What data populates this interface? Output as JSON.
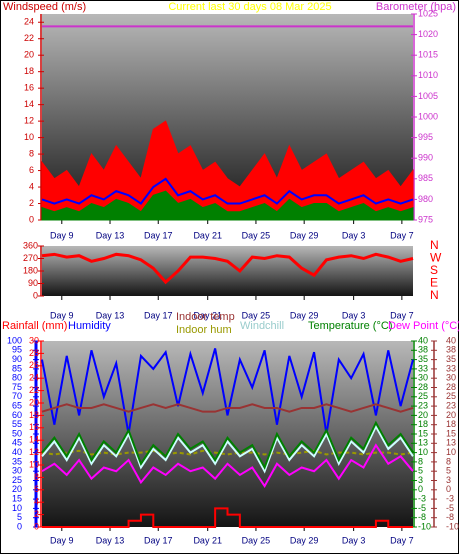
{
  "chart_data": [
    {
      "type": "line",
      "title": "Current last 30 days 08 Mar 2025",
      "y_label": "Windspeed (m/s)",
      "y2_label": "Barometer (hpa)",
      "x": [
        0,
        1,
        2,
        3,
        4,
        5,
        6,
        7,
        8,
        9,
        10,
        11,
        12,
        13,
        14,
        15,
        16,
        17,
        18,
        19,
        20,
        21,
        22,
        23,
        24,
        25,
        26,
        27,
        28,
        29,
        30
      ],
      "xlim": [
        0,
        30
      ],
      "xticks": [
        {
          "value": 1.6,
          "label": "Day 9"
        },
        {
          "value": 5.5,
          "label": "Day 13"
        },
        {
          "value": 9.4,
          "label": "Day 17"
        },
        {
          "value": 13.4,
          "label": "Day 21"
        },
        {
          "value": 17.3,
          "label": "Day 25"
        },
        {
          "value": 21.2,
          "label": "Day 29"
        },
        {
          "value": 25.2,
          "label": "Day 3"
        },
        {
          "value": 29.1,
          "label": "Day 7"
        }
      ],
      "ylim": [
        0,
        25
      ],
      "yticks": [
        0,
        2,
        4,
        6,
        8,
        10,
        12,
        14,
        16,
        18,
        20,
        22,
        24
      ],
      "y2lim": [
        975,
        1025
      ],
      "y2ticks": [
        975,
        980,
        985,
        990,
        995,
        1000,
        1005,
        1010,
        1015,
        1020,
        1025
      ],
      "series": [
        {
          "color": "#ff0000",
          "style": "area",
          "values": [
            7,
            5,
            6,
            4,
            8,
            6,
            9,
            7,
            5,
            11,
            12,
            8,
            9,
            6,
            7,
            5,
            4,
            6,
            8,
            5,
            9,
            6,
            7,
            8,
            5,
            6,
            7,
            5,
            6,
            4,
            6
          ]
        },
        {
          "color": "#0000ff",
          "style": "line",
          "values": [
            2.5,
            2,
            2.5,
            2,
            3,
            2.5,
            3.5,
            3,
            2,
            4,
            5,
            3,
            3.5,
            2.5,
            3,
            2,
            2,
            2.5,
            3,
            2,
            3.5,
            2.5,
            3,
            3,
            2,
            2.5,
            3,
            2,
            2.5,
            2,
            2.5
          ]
        },
        {
          "color": "#008000",
          "style": "area",
          "values": [
            1.5,
            1,
            1.5,
            1,
            2,
            1.5,
            2.5,
            2,
            1,
            3,
            3.5,
            2,
            2.5,
            1.5,
            2,
            1,
            1,
            1.5,
            2,
            1,
            2.5,
            1.5,
            2,
            2,
            1,
            1.5,
            2,
            1,
            1.5,
            1,
            1.5
          ]
        },
        {
          "color": "#cc33cc",
          "style": "line",
          "axis": "y2",
          "values": [
            1022,
            1022,
            1022,
            1022,
            1022,
            1022,
            1022,
            1022,
            1022,
            1022,
            1022,
            1022,
            1022,
            1022,
            1022,
            1022,
            1022,
            1022,
            1022,
            1022,
            1022,
            1022,
            1022,
            1022,
            1022,
            1022,
            1022,
            1022,
            1022,
            1022,
            1022
          ]
        }
      ]
    },
    {
      "type": "line",
      "x": [
        0,
        1,
        2,
        3,
        4,
        5,
        6,
        7,
        8,
        9,
        10,
        11,
        12,
        13,
        14,
        15,
        16,
        17,
        18,
        19,
        20,
        21,
        22,
        23,
        24,
        25,
        26,
        27,
        28,
        29,
        30
      ],
      "xlim": [
        0,
        30
      ],
      "xticks": [
        {
          "value": 1.6,
          "label": "Day 9"
        },
        {
          "value": 5.5,
          "label": "Day 13"
        },
        {
          "value": 9.4,
          "label": "Day 17"
        },
        {
          "value": 13.4,
          "label": "Day 21"
        },
        {
          "value": 17.3,
          "label": "Day 25"
        },
        {
          "value": 21.2,
          "label": "Day 29"
        },
        {
          "value": 25.2,
          "label": "Day 3"
        },
        {
          "value": 29.1,
          "label": "Day 7"
        }
      ],
      "ylim": [
        0,
        360
      ],
      "yticks": [
        0,
        90,
        180,
        270,
        360
      ],
      "y2lim": [
        0,
        360
      ],
      "y2ticks": [
        {
          "value": 360,
          "label": "N"
        },
        {
          "value": 270,
          "label": "W"
        },
        {
          "value": 180,
          "label": "S"
        },
        {
          "value": 90,
          "label": "E"
        },
        {
          "value": 0,
          "label": "N"
        }
      ],
      "series": [
        {
          "color": "#ff0000",
          "style": "line",
          "values": [
            290,
            300,
            280,
            290,
            250,
            270,
            300,
            290,
            260,
            200,
            100,
            180,
            280,
            280,
            270,
            250,
            180,
            280,
            270,
            290,
            280,
            200,
            150,
            260,
            280,
            290,
            270,
            300,
            280,
            250,
            270
          ]
        }
      ]
    },
    {
      "type": "line",
      "x": [
        0,
        1,
        2,
        3,
        4,
        5,
        6,
        7,
        8,
        9,
        10,
        11,
        12,
        13,
        14,
        15,
        16,
        17,
        18,
        19,
        20,
        21,
        22,
        23,
        24,
        25,
        26,
        27,
        28,
        29,
        30
      ],
      "xlim": [
        0,
        30
      ],
      "xticks": [
        {
          "value": 1.6,
          "label": "Day 9"
        },
        {
          "value": 5.5,
          "label": "Day 13"
        },
        {
          "value": 9.4,
          "label": "Day 17"
        },
        {
          "value": 13.4,
          "label": "Day 21"
        },
        {
          "value": 17.3,
          "label": "Day 25"
        },
        {
          "value": 21.2,
          "label": "Day 29"
        },
        {
          "value": 25.2,
          "label": "Day 3"
        },
        {
          "value": 29.1,
          "label": "Day 7"
        }
      ],
      "ylim": [
        0,
        100
      ],
      "yticks": [
        0,
        5,
        10,
        15,
        20,
        25,
        30,
        35,
        40,
        45,
        50,
        55,
        60,
        65,
        70,
        75,
        80,
        85,
        90,
        95,
        100
      ],
      "y2lim": [
        -10,
        40
      ],
      "y2ticks": [
        -10,
        {
          "value": -7.5,
          "label": "-8"
        },
        -5,
        {
          "value": -2.5,
          "label": "-3"
        },
        0,
        {
          "value": 2.5,
          "label": "3"
        },
        5,
        {
          "value": 7.5,
          "label": "8"
        },
        10,
        {
          "value": 12.5,
          "label": "13"
        },
        15,
        {
          "value": 17.5,
          "label": "18"
        },
        20,
        {
          "value": 22.5,
          "label": "23"
        },
        25,
        {
          "value": 27.5,
          "label": "28"
        },
        30,
        {
          "value": 32.5,
          "label": "33"
        },
        35,
        {
          "value": 37.5,
          "label": "38"
        },
        40
      ],
      "y3lim": [
        -10,
        40
      ],
      "y3ticks": [
        -10,
        {
          "value": -7.5,
          "label": "-8"
        },
        -5,
        {
          "value": -2.5,
          "label": "-3"
        },
        0,
        {
          "value": 2.5,
          "label": "3"
        },
        5,
        {
          "value": 7.5,
          "label": "8"
        },
        10,
        {
          "value": 12.5,
          "label": "13"
        },
        15,
        {
          "value": 17.5,
          "label": "18"
        },
        20,
        {
          "value": 22.5,
          "label": "23"
        },
        25,
        {
          "value": 27.5,
          "label": "28"
        },
        30,
        {
          "value": 32.5,
          "label": "33"
        },
        35,
        {
          "value": 37.5,
          "label": "38"
        },
        40
      ],
      "y4lim": [
        0,
        30
      ],
      "y4ticks": [
        0,
        2,
        4,
        6,
        8,
        10,
        12,
        14,
        16,
        18,
        20,
        22,
        24,
        26,
        28,
        30
      ],
      "series": [
        {
          "name": "Rainfall (mm)",
          "color": "#ff0000",
          "style": "step",
          "axis": "y4",
          "values": [
            0,
            0,
            0,
            0,
            0,
            0,
            0,
            0,
            1,
            2,
            0,
            0,
            0,
            0,
            0,
            3,
            2,
            0,
            0,
            0,
            0,
            0,
            0,
            0,
            0,
            0,
            0,
            0,
            1,
            0,
            0
          ]
        },
        {
          "name": "Humidity",
          "color": "#0000ff",
          "style": "line",
          "axis": "y",
          "values": [
            90,
            55,
            92,
            60,
            95,
            70,
            88,
            50,
            92,
            85,
            94,
            65,
            93,
            72,
            96,
            60,
            90,
            75,
            95,
            55,
            92,
            70,
            94,
            50,
            90,
            80,
            93,
            60,
            95,
            65,
            90
          ]
        },
        {
          "name": "Indoor temp",
          "color": "#993333",
          "style": "line",
          "axis": "y2",
          "values": [
            21,
            22,
            23,
            22,
            22,
            23,
            22,
            21,
            22,
            23,
            22,
            23,
            22,
            21,
            21,
            22,
            22,
            23,
            22,
            22,
            21,
            22,
            22,
            23,
            22,
            21,
            22,
            23,
            22,
            21,
            22
          ]
        },
        {
          "name": "Indoor hum",
          "color": "#999900",
          "style": "dash",
          "axis": "y",
          "values": [
            40,
            39,
            40,
            41,
            39,
            40,
            39,
            40,
            40,
            41,
            39,
            40,
            39,
            41,
            40,
            39,
            40,
            40,
            39,
            40,
            39,
            40,
            41,
            39,
            40,
            40,
            39,
            40,
            40,
            39,
            40
          ]
        },
        {
          "name": "Windchill",
          "color": "#ccffff",
          "style": "line",
          "axis": "y2",
          "values": [
            9,
            13,
            8,
            14,
            7,
            12,
            9,
            15,
            6,
            11,
            8,
            14,
            10,
            12,
            7,
            13,
            9,
            11,
            5,
            14,
            8,
            12,
            9,
            15,
            7,
            13,
            10,
            17,
            11,
            14,
            9
          ]
        },
        {
          "name": "Temperature (°C)",
          "color": "#008000",
          "style": "line",
          "axis": "y2",
          "values": [
            10,
            14,
            9,
            15,
            8,
            13,
            10,
            16,
            7,
            12,
            9,
            15,
            11,
            13,
            8,
            14,
            10,
            12,
            6,
            15,
            9,
            13,
            10,
            16,
            8,
            14,
            11,
            18,
            12,
            15,
            10
          ]
        },
        {
          "name": "Dew Point (°C)",
          "color": "#ff00ff",
          "style": "line",
          "axis": "y3",
          "values": [
            5,
            7,
            4,
            8,
            3,
            6,
            5,
            8,
            2,
            6,
            4,
            7,
            5,
            6,
            3,
            7,
            4,
            6,
            1,
            7,
            4,
            6,
            5,
            8,
            3,
            8,
            6,
            12,
            7,
            9,
            5
          ]
        }
      ]
    }
  ]
}
